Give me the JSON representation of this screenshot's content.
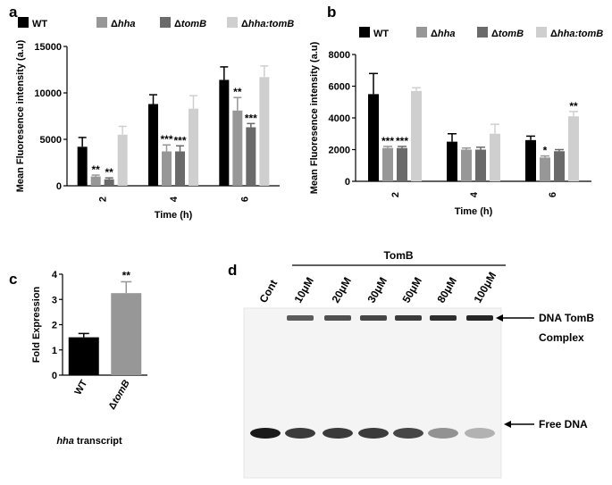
{
  "colors": {
    "WT": "#000000",
    "hha": "#979797",
    "tomB": "#6a6a6a",
    "hha_tomB": "#cfcfcf",
    "axis": "#000000",
    "gel_band": "#1a1a1a"
  },
  "panel_letters": {
    "a": "a",
    "b": "b",
    "c": "c",
    "d": "d"
  },
  "chart_data": [
    {
      "panel": "a",
      "type": "bar",
      "title": "",
      "xlabel": "Time (h)",
      "ylabel": "Mean Fluoresence intensity (a.u)",
      "ylim": [
        0,
        15000
      ],
      "yticks": [
        0,
        5000,
        10000,
        15000
      ],
      "categories": [
        "2",
        "4",
        "6"
      ],
      "legend": [
        "WT",
        "Δhha",
        "ΔtomB",
        "Δhha:tomB"
      ],
      "series": [
        {
          "name": "WT",
          "color": "#000000",
          "values": [
            4200,
            8800,
            11400
          ],
          "errors": [
            1000,
            1000,
            1400
          ]
        },
        {
          "name": "Δhha",
          "color": "#979797",
          "values": [
            1000,
            3700,
            8100
          ],
          "errors": [
            150,
            700,
            1400
          ]
        },
        {
          "name": "ΔtomB",
          "color": "#6a6a6a",
          "values": [
            700,
            3700,
            6300
          ],
          "errors": [
            150,
            600,
            400
          ]
        },
        {
          "name": "Δhha:tomB",
          "color": "#cfcfcf",
          "values": [
            5500,
            8300,
            11700
          ],
          "errors": [
            900,
            1400,
            1200
          ]
        }
      ],
      "annotations": [
        {
          "series": 1,
          "category": 0,
          "text": "**"
        },
        {
          "series": 2,
          "category": 0,
          "text": "**"
        },
        {
          "series": 1,
          "category": 1,
          "text": "***"
        },
        {
          "series": 2,
          "category": 1,
          "text": "***"
        },
        {
          "series": 1,
          "category": 2,
          "text": "**"
        },
        {
          "series": 2,
          "category": 2,
          "text": "***"
        }
      ]
    },
    {
      "panel": "b",
      "type": "bar",
      "title": "",
      "xlabel": "Time (h)",
      "ylabel": "Mean Fluoresence intensity (a.u)",
      "ylim": [
        0,
        8000
      ],
      "yticks": [
        0,
        2000,
        4000,
        6000,
        8000
      ],
      "categories": [
        "2",
        "4",
        "6"
      ],
      "legend": [
        "WT",
        "Δhha",
        "ΔtomB",
        "Δhha:tomB"
      ],
      "series": [
        {
          "name": "WT",
          "color": "#000000",
          "values": [
            5500,
            2500,
            2600
          ],
          "errors": [
            1300,
            500,
            250
          ]
        },
        {
          "name": "Δhha",
          "color": "#979797",
          "values": [
            2100,
            2000,
            1500
          ],
          "errors": [
            100,
            100,
            100
          ]
        },
        {
          "name": "ΔtomB",
          "color": "#6a6a6a",
          "values": [
            2100,
            2000,
            1900
          ],
          "errors": [
            100,
            150,
            100
          ]
        },
        {
          "name": "Δhha:tomB",
          "color": "#cfcfcf",
          "values": [
            5700,
            3000,
            4100
          ],
          "errors": [
            200,
            600,
            300
          ]
        }
      ],
      "annotations": [
        {
          "series": 1,
          "category": 0,
          "text": "***"
        },
        {
          "series": 2,
          "category": 0,
          "text": "***"
        },
        {
          "series": 1,
          "category": 2,
          "text": "*"
        },
        {
          "series": 3,
          "category": 2,
          "text": "**"
        }
      ]
    },
    {
      "panel": "c",
      "type": "bar",
      "title": "",
      "xlabel": "hha transcript",
      "ylabel": "Fold Expression",
      "ylim": [
        0,
        4
      ],
      "yticks": [
        0,
        1,
        2,
        3,
        4
      ],
      "categories": [
        "WT",
        "ΔtomB"
      ],
      "series": [
        {
          "name": "Fold Expression",
          "values": [
            1.5,
            3.25
          ],
          "errors": [
            0.15,
            0.45
          ],
          "colors": [
            "#000000",
            "#979797"
          ]
        }
      ],
      "annotations": [
        {
          "series": 0,
          "category": 1,
          "text": "**"
        }
      ]
    }
  ],
  "gel": {
    "group_label": "TomB",
    "lanes": [
      "Cont",
      "10μM",
      "20μM",
      "30μM",
      "50μM",
      "80μM",
      "100μM"
    ],
    "complex_label_line1": "DNA TomB",
    "complex_label_line2": "Complex",
    "free_label": "Free DNA",
    "complex_intensity": [
      0,
      0.7,
      0.75,
      0.8,
      0.85,
      0.9,
      0.95
    ],
    "free_intensity": [
      1.0,
      0.85,
      0.85,
      0.85,
      0.8,
      0.45,
      0.3
    ]
  }
}
